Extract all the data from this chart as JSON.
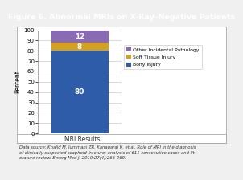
{
  "title": "Figure 6. Abnormal MRIs on X-Ray–Negative Patients",
  "title_bg_color": "#29b5c8",
  "title_text_color": "#ffffff",
  "values": [
    80,
    8,
    12
  ],
  "labels": [
    "80",
    "8",
    "12"
  ],
  "bar_colors": [
    "#2e5ca8",
    "#d4a020",
    "#8b6ab5"
  ],
  "legend_labels": [
    "Other Incidental Pathology",
    "Soft Tissue Injury",
    "Bony Injury"
  ],
  "legend_colors": [
    "#8b6ab5",
    "#d4a020",
    "#2e5ca8"
  ],
  "ylabel": "Percent",
  "xlabel": "MRI Results",
  "ylim": [
    0,
    100
  ],
  "yticks": [
    0,
    10,
    20,
    30,
    40,
    50,
    60,
    70,
    80,
    90,
    100
  ],
  "caption": "Data source: Khalid M, Jummani ZR, Kanagaraj K, et al. Role of MRI in the diagnosis\nof clinically suspected scaphoid fracture: analysis of 611 consecutive cases and lit-\nerature review. Emerg Med J. 2010;27(4):266-269.",
  "bg_color": "#f0f0f0",
  "chart_bg_color": "#ffffff",
  "border_color": "#aaaaaa",
  "grid_color": "#cccccc"
}
